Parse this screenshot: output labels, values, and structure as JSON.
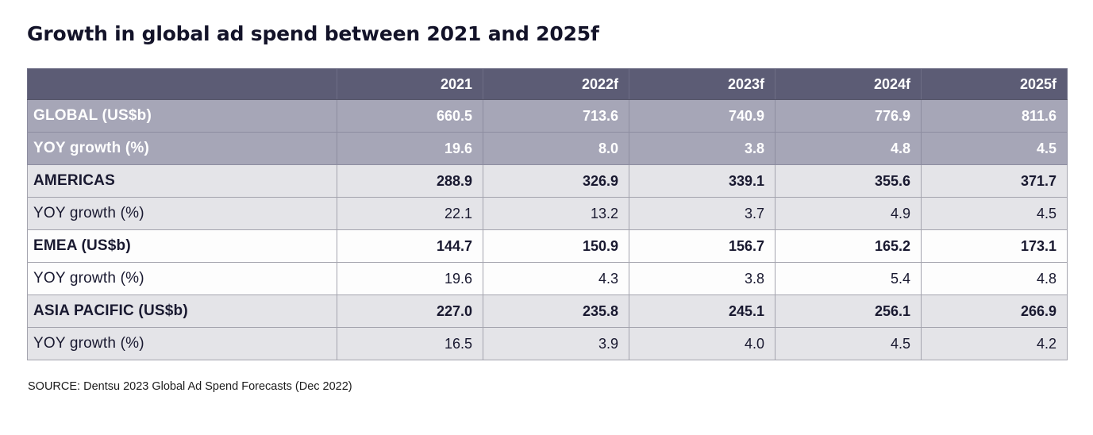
{
  "title": "Growth in global ad spend between 2021 and 2025f",
  "source": "SOURCE: Dentsu 2023 Global Ad Spend Forecasts (Dec 2022)",
  "colors": {
    "header_bg": "#5c5c75",
    "global_row_bg": "#a6a6b7",
    "gray_row_bg": "#e4e4e8",
    "white_row_bg": "#fdfdfd",
    "header_text": "#ffffff",
    "body_text": "#191930",
    "title_text": "#131329"
  },
  "chart_data": {
    "type": "table",
    "title": "Growth in global ad spend between 2021 and 2025f",
    "columns": [
      "",
      "2021",
      "2022f",
      "2023f",
      "2024f",
      "2025f"
    ],
    "rows": [
      {
        "label": "GLOBAL (US$b)",
        "values": [
          "660.5",
          "713.6",
          "740.9",
          "776.9",
          "811.6"
        ]
      },
      {
        "label": "YOY growth (%)",
        "values": [
          "19.6",
          "8.0",
          "3.8",
          "4.8",
          "4.5"
        ]
      },
      {
        "label": "AMERICAS",
        "values": [
          "288.9",
          "326.9",
          "339.1",
          "355.6",
          "371.7"
        ]
      },
      {
        "label": "YOY growth (%)",
        "values": [
          "22.1",
          "13.2",
          "3.7",
          "4.9",
          "4.5"
        ]
      },
      {
        "label": "EMEA (US$b)",
        "values": [
          "144.7",
          "150.9",
          "156.7",
          "165.2",
          "173.1"
        ]
      },
      {
        "label": "YOY growth (%)",
        "values": [
          "19.6",
          "4.3",
          "3.8",
          "5.4",
          "4.8"
        ]
      },
      {
        "label": "ASIA PACIFIC (US$b)",
        "values": [
          "227.0",
          "235.8",
          "245.1",
          "256.1",
          "266.9"
        ]
      },
      {
        "label": "YOY growth (%)",
        "values": [
          "16.5",
          "3.9",
          "4.0",
          "4.5",
          "4.2"
        ]
      }
    ],
    "source": "SOURCE: Dentsu 2023 Global Ad Spend Forecasts (Dec 2022)"
  }
}
